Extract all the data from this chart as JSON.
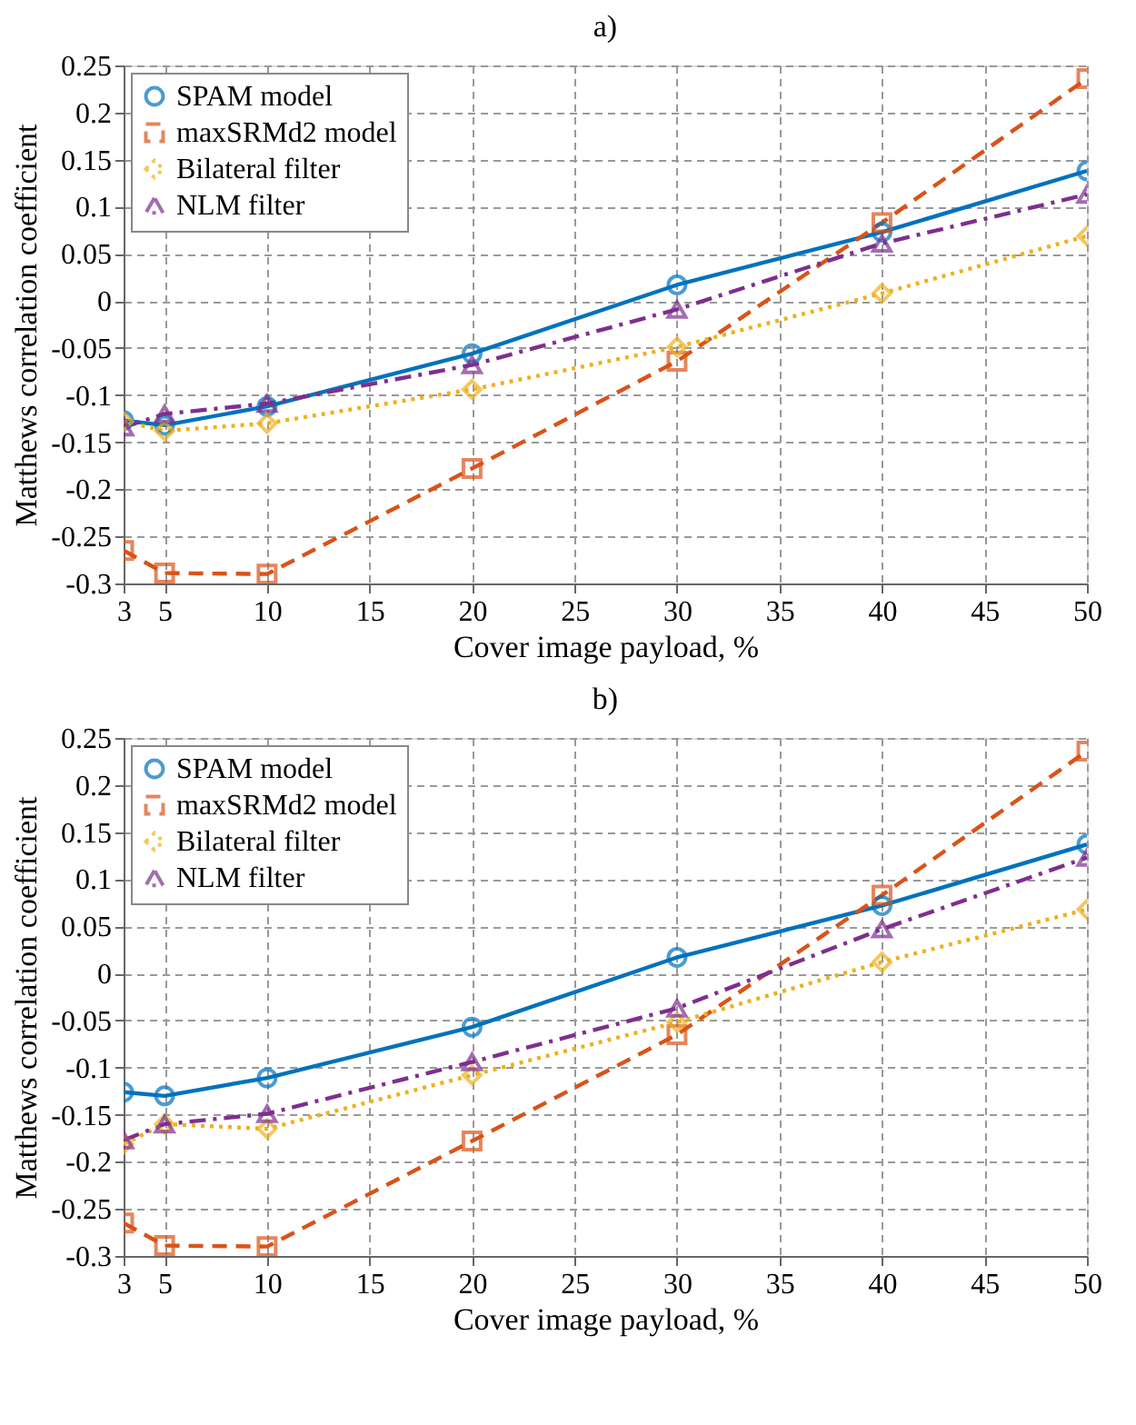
{
  "chart_data": [
    {
      "type": "line",
      "title": "a)",
      "xlabel": "Cover image payload, %",
      "ylabel": "Matthews correlation coefficient",
      "x": [
        3,
        5,
        10,
        20,
        30,
        40,
        50
      ],
      "xlim": [
        3,
        50
      ],
      "xticks": [
        3,
        5,
        10,
        15,
        20,
        25,
        30,
        35,
        40,
        45,
        50
      ],
      "ylim": [
        -0.3,
        0.25
      ],
      "yticks": [
        -0.3,
        -0.25,
        -0.2,
        -0.15,
        -0.1,
        -0.05,
        0,
        0.05,
        0.1,
        0.15,
        0.2,
        0.25
      ],
      "grid": true,
      "legend": "top left",
      "series": [
        {
          "name": "SPAM model",
          "color": "#0072bd",
          "marker": "circle",
          "line_style": "solid",
          "values": [
            -0.127,
            -0.132,
            -0.112,
            -0.056,
            0.017,
            0.073,
            0.138
          ]
        },
        {
          "name": "maxSRMd2 model",
          "color": "#d95319",
          "marker": "square",
          "line_style": "dashed",
          "values": [
            -0.265,
            -0.289,
            -0.29,
            -0.178,
            -0.064,
            0.083,
            0.236
          ]
        },
        {
          "name": "Bilateral filter",
          "color": "#edb120",
          "marker": "diamond",
          "line_style": "dotted",
          "values": [
            -0.128,
            -0.138,
            -0.13,
            -0.094,
            -0.049,
            0.008,
            0.069
          ]
        },
        {
          "name": "NLM filter",
          "color": "#7e2f8e",
          "marker": "triangle",
          "line_style": "dashdot",
          "values": [
            -0.134,
            -0.12,
            -0.109,
            -0.068,
            -0.009,
            0.061,
            0.113
          ]
        }
      ]
    },
    {
      "type": "line",
      "title": "b)",
      "xlabel": "Cover image payload, %",
      "ylabel": "Matthews correlation coefficient",
      "x": [
        3,
        5,
        10,
        20,
        30,
        40,
        50
      ],
      "xlim": [
        3,
        50
      ],
      "xticks": [
        3,
        5,
        10,
        15,
        20,
        25,
        30,
        35,
        40,
        45,
        50
      ],
      "ylim": [
        -0.3,
        0.25
      ],
      "yticks": [
        -0.3,
        -0.25,
        -0.2,
        -0.15,
        -0.1,
        -0.05,
        0,
        0.05,
        0.1,
        0.15,
        0.2,
        0.25
      ],
      "grid": true,
      "legend": "top left",
      "series": [
        {
          "name": "SPAM model",
          "color": "#0072bd",
          "marker": "circle",
          "line_style": "solid",
          "values": [
            -0.126,
            -0.13,
            -0.111,
            -0.057,
            0.017,
            0.072,
            0.137
          ]
        },
        {
          "name": "maxSRMd2 model",
          "color": "#d95319",
          "marker": "square",
          "line_style": "dashed",
          "values": [
            -0.265,
            -0.289,
            -0.29,
            -0.178,
            -0.065,
            0.083,
            0.236
          ]
        },
        {
          "name": "Bilateral filter",
          "color": "#edb120",
          "marker": "diamond",
          "line_style": "dotted",
          "values": [
            -0.181,
            -0.16,
            -0.165,
            -0.108,
            -0.052,
            0.012,
            0.068
          ]
        },
        {
          "name": "NLM filter",
          "color": "#7e2f8e",
          "marker": "triangle",
          "line_style": "dashdot",
          "values": [
            -0.177,
            -0.16,
            -0.149,
            -0.094,
            -0.037,
            0.047,
            0.123
          ]
        }
      ]
    }
  ]
}
